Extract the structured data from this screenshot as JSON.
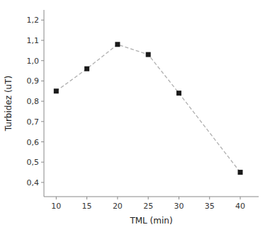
{
  "chart_data": {
    "type": "line",
    "x": [
      10,
      15,
      20,
      25,
      30,
      40
    ],
    "values": [
      0.85,
      0.96,
      1.08,
      1.03,
      0.84,
      0.45
    ],
    "xlabel": "TML (min)",
    "ylabel": "Turbidez (uT)",
    "xlim": [
      8,
      43
    ],
    "ylim": [
      0.33,
      1.25
    ],
    "xticks": [
      10,
      15,
      20,
      25,
      30,
      35,
      40
    ],
    "yticks": [
      {
        "value": 0.4,
        "label": "0,4"
      },
      {
        "value": 0.5,
        "label": "0,5"
      },
      {
        "value": 0.6,
        "label": "0,6"
      },
      {
        "value": 0.7,
        "label": "0,7"
      },
      {
        "value": 0.8,
        "label": "0,8"
      },
      {
        "value": 0.9,
        "label": "0,9"
      },
      {
        "value": 1.0,
        "label": "1,0"
      },
      {
        "value": 1.1,
        "label": "1,1"
      },
      {
        "value": 1.2,
        "label": "1,2"
      }
    ],
    "color": "#1a1a1a",
    "marker": "square",
    "line_style": "dashed",
    "grid": false
  }
}
